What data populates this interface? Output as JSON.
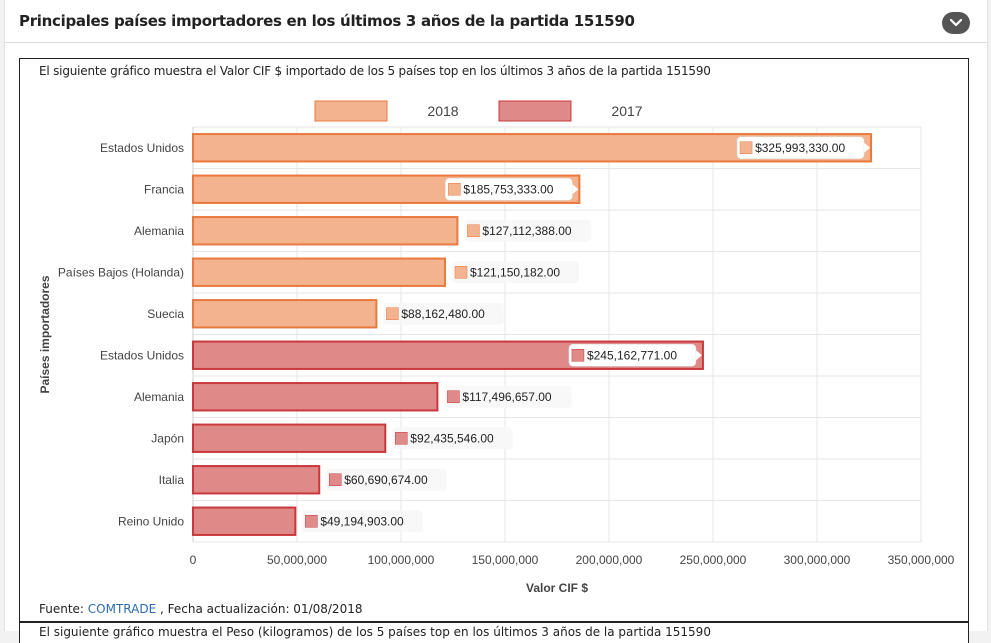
{
  "panel": {
    "title": "Principales países importadores en los últimos 3 años de la partida 151590",
    "collapse_icon": "chevron-down-icon"
  },
  "chart_section": {
    "description": "El siguiente gráfico muestra el Valor CIF $ importado de los 5 países top en los últimos 3 años de la partida 151590",
    "footer_prefix": "Fuente: ",
    "footer_link": "COMTRADE",
    "footer_suffix": " , Fecha actualización: 01/08/2018"
  },
  "next_section": {
    "text": "El siguiente gráfico muestra el Peso (kilogramos) de los 5 países top en los últimos 3 años de la partida 151590"
  },
  "colors": {
    "s2018_fill": "#f4b38f",
    "s2018_stroke": "#e8793f",
    "s2017_fill": "#e08989",
    "s2017_stroke": "#c9393b",
    "grid": "#e6e6e6"
  },
  "chart_data": {
    "type": "bar",
    "orientation": "horizontal",
    "xlabel": "Valor CIF $",
    "ylabel": "Países importadores",
    "xlim": [
      0,
      350000000
    ],
    "xticks": [
      0,
      50000000,
      100000000,
      150000000,
      200000000,
      250000000,
      300000000,
      350000000
    ],
    "xtick_labels": [
      "0",
      "50,000,000",
      "100,000,000",
      "150,000,000",
      "200,000,000",
      "250,000,000",
      "300,000,000",
      "350,000,000"
    ],
    "grid": true,
    "legend_position": "top",
    "series": [
      {
        "name": "2018",
        "categories": [
          "Estados Unidos",
          "Francia",
          "Alemania",
          "Países Bajos (Holanda)",
          "Suecia"
        ],
        "values": [
          325993330,
          185753333,
          127112388,
          121150182,
          88162480
        ],
        "labels": [
          "$325,993,330.00",
          "$185,753,333.00",
          "$127,112,388.00",
          "$121,150,182.00",
          "$88,162,480.00"
        ]
      },
      {
        "name": "2017",
        "categories": [
          "Estados Unidos",
          "Alemania",
          "Japón",
          "Italia",
          "Reino Unido"
        ],
        "values": [
          245162771,
          117496657,
          92435546,
          60690674,
          49194903
        ],
        "labels": [
          "$245,162,771.00",
          "$117,496,657.00",
          "$92,435,546.00",
          "$60,690,674.00",
          "$49,194,903.00"
        ]
      }
    ]
  }
}
